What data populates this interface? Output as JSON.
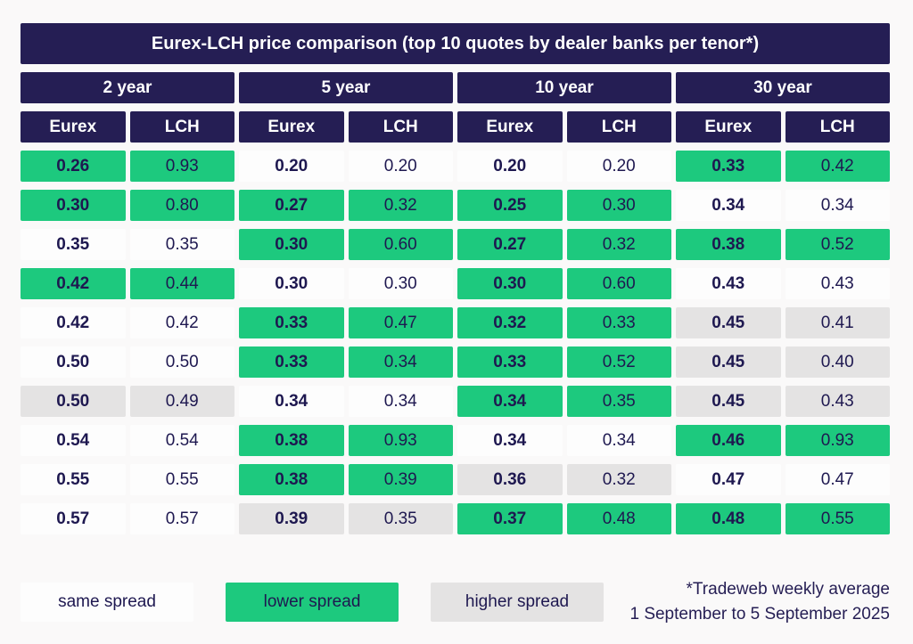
{
  "colors": {
    "navy": "#251e54",
    "green_lower": "#1dc97e",
    "gray_higher": "#e4e3e3",
    "white_same": "#fdfdfd",
    "page_background": "#faf9f9",
    "value_text": "#1e1850"
  },
  "chart_data": {
    "type": "table",
    "title": "Eurex-LCH price comparison (top 10 quotes by dealer banks per tenor*)",
    "tenor_groups": [
      "2 year",
      "5 year",
      "10 year",
      "30 year"
    ],
    "sub_columns": [
      "Eurex",
      "LCH"
    ],
    "status_meaning": {
      "lower": "Eurex spread lower than LCH (green)",
      "same": "same spread (white)",
      "higher": "Eurex spread higher than LCH (gray)"
    },
    "rows": [
      {
        "groups": [
          {
            "eurex": "0.26",
            "lch": "0.93",
            "status": "lower"
          },
          {
            "eurex": "0.20",
            "lch": "0.20",
            "status": "same"
          },
          {
            "eurex": "0.20",
            "lch": "0.20",
            "status": "same"
          },
          {
            "eurex": "0.33",
            "lch": "0.42",
            "status": "lower"
          }
        ]
      },
      {
        "groups": [
          {
            "eurex": "0.30",
            "lch": "0.80",
            "status": "lower"
          },
          {
            "eurex": "0.27",
            "lch": "0.32",
            "status": "lower"
          },
          {
            "eurex": "0.25",
            "lch": "0.30",
            "status": "lower"
          },
          {
            "eurex": "0.34",
            "lch": "0.34",
            "status": "same"
          }
        ]
      },
      {
        "groups": [
          {
            "eurex": "0.35",
            "lch": "0.35",
            "status": "same"
          },
          {
            "eurex": "0.30",
            "lch": "0.60",
            "status": "lower"
          },
          {
            "eurex": "0.27",
            "lch": "0.32",
            "status": "lower"
          },
          {
            "eurex": "0.38",
            "lch": "0.52",
            "status": "lower"
          }
        ]
      },
      {
        "groups": [
          {
            "eurex": "0.42",
            "lch": "0.44",
            "status": "lower"
          },
          {
            "eurex": "0.30",
            "lch": "0.30",
            "status": "same"
          },
          {
            "eurex": "0.30",
            "lch": "0.60",
            "status": "lower"
          },
          {
            "eurex": "0.43",
            "lch": "0.43",
            "status": "same"
          }
        ]
      },
      {
        "groups": [
          {
            "eurex": "0.42",
            "lch": "0.42",
            "status": "same"
          },
          {
            "eurex": "0.33",
            "lch": "0.47",
            "status": "lower"
          },
          {
            "eurex": "0.32",
            "lch": "0.33",
            "status": "lower"
          },
          {
            "eurex": "0.45",
            "lch": "0.41",
            "status": "higher"
          }
        ]
      },
      {
        "groups": [
          {
            "eurex": "0.50",
            "lch": "0.50",
            "status": "same"
          },
          {
            "eurex": "0.33",
            "lch": "0.34",
            "status": "lower"
          },
          {
            "eurex": "0.33",
            "lch": "0.52",
            "status": "lower"
          },
          {
            "eurex": "0.45",
            "lch": "0.40",
            "status": "higher"
          }
        ]
      },
      {
        "groups": [
          {
            "eurex": "0.50",
            "lch": "0.49",
            "status": "higher"
          },
          {
            "eurex": "0.34",
            "lch": "0.34",
            "status": "same"
          },
          {
            "eurex": "0.34",
            "lch": "0.35",
            "status": "lower"
          },
          {
            "eurex": "0.45",
            "lch": "0.43",
            "status": "higher"
          }
        ]
      },
      {
        "groups": [
          {
            "eurex": "0.54",
            "lch": "0.54",
            "status": "same"
          },
          {
            "eurex": "0.38",
            "lch": "0.93",
            "status": "lower"
          },
          {
            "eurex": "0.34",
            "lch": "0.34",
            "status": "same"
          },
          {
            "eurex": "0.46",
            "lch": "0.93",
            "status": "lower"
          }
        ]
      },
      {
        "groups": [
          {
            "eurex": "0.55",
            "lch": "0.55",
            "status": "same"
          },
          {
            "eurex": "0.38",
            "lch": "0.39",
            "status": "lower"
          },
          {
            "eurex": "0.36",
            "lch": "0.32",
            "status": "higher"
          },
          {
            "eurex": "0.47",
            "lch": "0.47",
            "status": "same"
          }
        ]
      },
      {
        "groups": [
          {
            "eurex": "0.57",
            "lch": "0.57",
            "status": "same"
          },
          {
            "eurex": "0.39",
            "lch": "0.35",
            "status": "higher"
          },
          {
            "eurex": "0.37",
            "lch": "0.48",
            "status": "lower"
          },
          {
            "eurex": "0.48",
            "lch": "0.55",
            "status": "lower"
          }
        ]
      }
    ],
    "legend": [
      {
        "label": "same spread",
        "status": "same"
      },
      {
        "label": "lower spread",
        "status": "lower"
      },
      {
        "label": "higher spread",
        "status": "higher"
      }
    ],
    "annotation": {
      "line1": "*Tradeweb weekly average",
      "line2": "1 September to 5 September 2025"
    }
  }
}
